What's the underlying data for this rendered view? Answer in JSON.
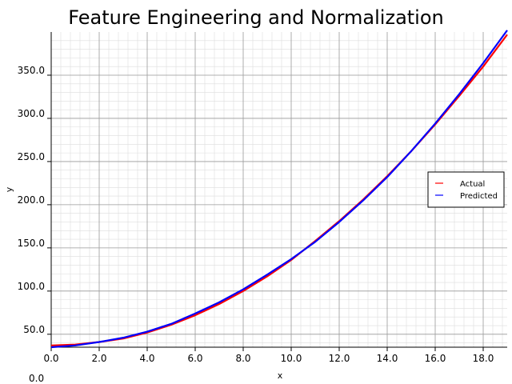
{
  "chart_data": {
    "type": "line",
    "title": "Feature Engineering and Normalization",
    "xlabel": "x",
    "ylabel": "y",
    "xlim": [
      0,
      19
    ],
    "ylim": [
      35,
      400
    ],
    "x": [
      0,
      1,
      2,
      3,
      4,
      5,
      6,
      7,
      8,
      9,
      10,
      11,
      12,
      13,
      14,
      15,
      16,
      17,
      18,
      19
    ],
    "xticks": [
      0,
      2,
      4,
      6,
      8,
      10,
      12,
      14,
      16,
      18
    ],
    "xtick_labels": [
      "0.0",
      "2.0",
      "4.0",
      "6.0",
      "8.0",
      "10.0",
      "12.0",
      "14.0",
      "16.0",
      "18.0"
    ],
    "yticks": [
      50,
      100,
      150,
      200,
      250,
      300,
      350
    ],
    "ytick_labels": [
      "50.0",
      "100.0",
      "150.0",
      "200.0",
      "250.0",
      "300.0",
      "350.0"
    ],
    "corner_label": "0.0",
    "grid": true,
    "legend_position": "center-right",
    "series": [
      {
        "name": "Actual",
        "color": "#ff0000",
        "values": [
          37,
          38,
          41,
          45,
          52,
          61,
          72,
          85,
          100,
          117,
          136,
          158,
          181,
          206,
          233,
          262,
          293,
          326,
          360,
          397
        ]
      },
      {
        "name": "Predicted",
        "color": "#0000ff",
        "values": [
          35,
          37,
          41,
          46,
          53,
          62,
          74,
          87,
          102,
          119,
          137,
          157,
          180,
          205,
          232,
          262,
          294,
          328,
          364,
          402
        ]
      }
    ]
  }
}
